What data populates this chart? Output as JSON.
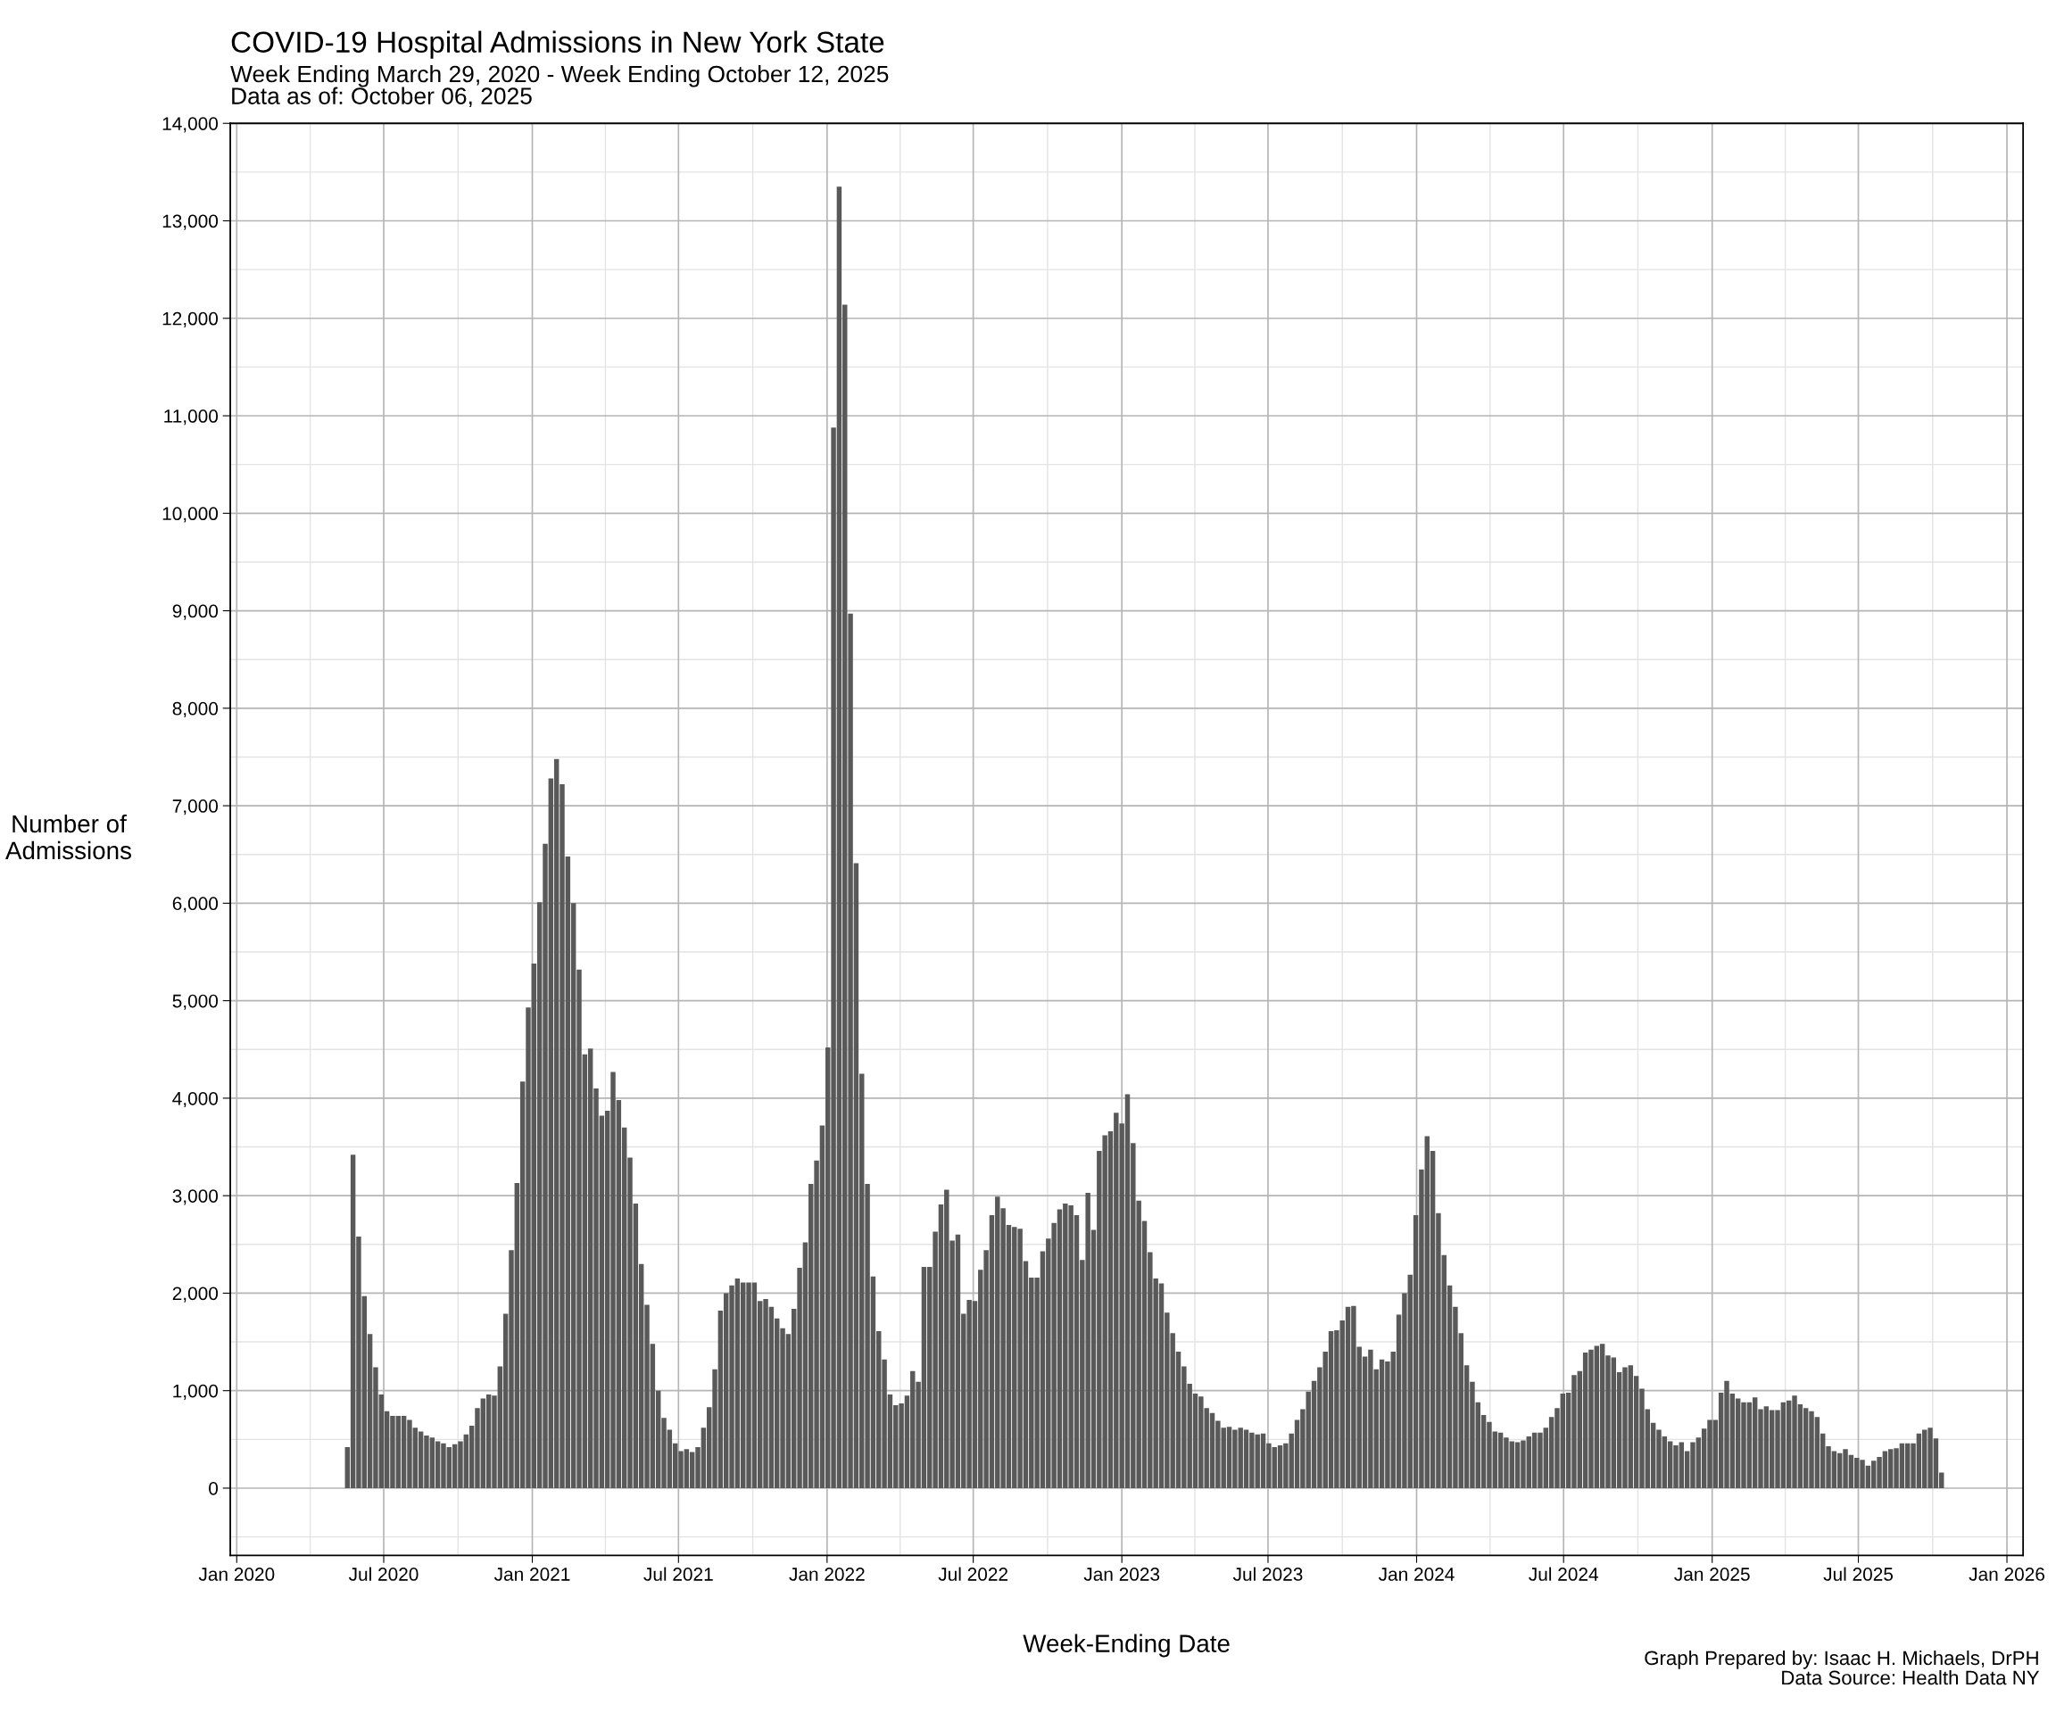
{
  "chart_data": {
    "type": "bar",
    "title": "COVID-19 Hospital Admissions in New York State",
    "subtitle": "Week Ending March 29, 2020 - Week Ending October 12, 2025\nData as of: October 06, 2025",
    "xlabel": "Week-Ending Date",
    "ylabel": "Number of\nAdmissions",
    "annotations": [
      "Graph Prepared by: Isaac H. Michaels, DrPH",
      "Data Source: Health Data NY"
    ],
    "color": "#595959",
    "grid": true,
    "legend": false,
    "xlim": [
      "2019-12-24",
      "2026-01-21"
    ],
    "xticks": [
      {
        "value": "2020-01-01",
        "label": "Jan 2020"
      },
      {
        "value": "2020-07-01",
        "label": "Jul 2020"
      },
      {
        "value": "2021-01-01",
        "label": "Jan 2021"
      },
      {
        "value": "2021-07-01",
        "label": "Jul 2021"
      },
      {
        "value": "2022-01-01",
        "label": "Jan 2022"
      },
      {
        "value": "2022-07-01",
        "label": "Jul 2022"
      },
      {
        "value": "2023-01-01",
        "label": "Jan 2023"
      },
      {
        "value": "2023-07-01",
        "label": "Jul 2023"
      },
      {
        "value": "2024-01-01",
        "label": "Jan 2024"
      },
      {
        "value": "2024-07-01",
        "label": "Jul 2024"
      },
      {
        "value": "2025-01-01",
        "label": "Jan 2025"
      },
      {
        "value": "2025-07-01",
        "label": "Jul 2025"
      },
      {
        "value": "2026-01-01",
        "label": "Jan 2026"
      }
    ],
    "ylim": [
      -690,
      14000
    ],
    "yticks": [
      0,
      {
        "value": 1000,
        "label": "1,000"
      },
      {
        "value": 2000,
        "label": "2,000"
      },
      {
        "value": 3000,
        "label": "3,000"
      },
      {
        "value": 4000,
        "label": "4,000"
      },
      {
        "value": 5000,
        "label": "5,000"
      },
      {
        "value": 6000,
        "label": "6,000"
      },
      {
        "value": 7000,
        "label": "7,000"
      },
      {
        "value": 8000,
        "label": "8,000"
      },
      {
        "value": 9000,
        "label": "9,000"
      },
      {
        "value": 10000,
        "label": "10,000"
      },
      {
        "value": 11000,
        "label": "11,000"
      },
      {
        "value": 12000,
        "label": "12,000"
      },
      {
        "value": 13000,
        "label": "13,000"
      },
      {
        "value": 14000,
        "label": "14,000"
      }
    ],
    "x": [
      "2020-05-17",
      "2020-05-24",
      "2020-05-31",
      "2020-06-07",
      "2020-06-14",
      "2020-06-21",
      "2020-06-28",
      "2020-07-05",
      "2020-07-12",
      "2020-07-19",
      "2020-07-26",
      "2020-08-02",
      "2020-08-09",
      "2020-08-16",
      "2020-08-23",
      "2020-08-30",
      "2020-09-06",
      "2020-09-13",
      "2020-09-20",
      "2020-09-27",
      "2020-10-04",
      "2020-10-11",
      "2020-10-18",
      "2020-10-25",
      "2020-11-01",
      "2020-11-08",
      "2020-11-15",
      "2020-11-22",
      "2020-11-29",
      "2020-12-06",
      "2020-12-13",
      "2020-12-20",
      "2020-12-27",
      "2021-01-03",
      "2021-01-10",
      "2021-01-17",
      "2021-01-24",
      "2021-01-31",
      "2021-02-07",
      "2021-02-14",
      "2021-02-21",
      "2021-02-28",
      "2021-03-07",
      "2021-03-14",
      "2021-03-21",
      "2021-03-28",
      "2021-04-04",
      "2021-04-11",
      "2021-04-18",
      "2021-04-25",
      "2021-05-02",
      "2021-05-09",
      "2021-05-16",
      "2021-05-23",
      "2021-05-30",
      "2021-06-06",
      "2021-06-13",
      "2021-06-20",
      "2021-06-27",
      "2021-07-04",
      "2021-07-11",
      "2021-07-18",
      "2021-07-25",
      "2021-08-01",
      "2021-08-08",
      "2021-08-15",
      "2021-08-22",
      "2021-08-29",
      "2021-09-05",
      "2021-09-12",
      "2021-09-19",
      "2021-09-26",
      "2021-10-03",
      "2021-10-10",
      "2021-10-17",
      "2021-10-24",
      "2021-10-31",
      "2021-11-07",
      "2021-11-14",
      "2021-11-21",
      "2021-11-28",
      "2021-12-05",
      "2021-12-12",
      "2021-12-19",
      "2021-12-26",
      "2022-01-02",
      "2022-01-09",
      "2022-01-16",
      "2022-01-23",
      "2022-01-30",
      "2022-02-06",
      "2022-02-13",
      "2022-02-20",
      "2022-02-27",
      "2022-03-06",
      "2022-03-13",
      "2022-03-20",
      "2022-03-27",
      "2022-04-03",
      "2022-04-10",
      "2022-04-17",
      "2022-04-24",
      "2022-05-01",
      "2022-05-08",
      "2022-05-15",
      "2022-05-22",
      "2022-05-29",
      "2022-06-05",
      "2022-06-12",
      "2022-06-19",
      "2022-06-26",
      "2022-07-03",
      "2022-07-10",
      "2022-07-17",
      "2022-07-24",
      "2022-07-31",
      "2022-08-07",
      "2022-08-14",
      "2022-08-21",
      "2022-08-28",
      "2022-09-04",
      "2022-09-11",
      "2022-09-18",
      "2022-09-25",
      "2022-10-02",
      "2022-10-09",
      "2022-10-16",
      "2022-10-23",
      "2022-10-30",
      "2022-11-06",
      "2022-11-13",
      "2022-11-20",
      "2022-11-27",
      "2022-12-04",
      "2022-12-11",
      "2022-12-18",
      "2022-12-25",
      "2023-01-01",
      "2023-01-08",
      "2023-01-15",
      "2023-01-22",
      "2023-01-29",
      "2023-02-05",
      "2023-02-12",
      "2023-02-19",
      "2023-02-26",
      "2023-03-05",
      "2023-03-12",
      "2023-03-19",
      "2023-03-26",
      "2023-04-02",
      "2023-04-09",
      "2023-04-16",
      "2023-04-23",
      "2023-04-30",
      "2023-05-07",
      "2023-05-14",
      "2023-05-21",
      "2023-05-28",
      "2023-06-04",
      "2023-06-11",
      "2023-06-18",
      "2023-06-25",
      "2023-07-02",
      "2023-07-09",
      "2023-07-16",
      "2023-07-23",
      "2023-07-30",
      "2023-08-06",
      "2023-08-13",
      "2023-08-20",
      "2023-08-27",
      "2023-09-03",
      "2023-09-10",
      "2023-09-17",
      "2023-09-24",
      "2023-10-01",
      "2023-10-08",
      "2023-10-15",
      "2023-10-22",
      "2023-10-29",
      "2023-11-05",
      "2023-11-12",
      "2023-11-19",
      "2023-11-26",
      "2023-12-03",
      "2023-12-10",
      "2023-12-17",
      "2023-12-24",
      "2023-12-31",
      "2024-01-07",
      "2024-01-14",
      "2024-01-21",
      "2024-01-28",
      "2024-02-04",
      "2024-02-11",
      "2024-02-18",
      "2024-02-25",
      "2024-03-03",
      "2024-03-10",
      "2024-03-17",
      "2024-03-24",
      "2024-03-31",
      "2024-04-07",
      "2024-04-14",
      "2024-04-21",
      "2024-04-28",
      "2024-05-05",
      "2024-05-12",
      "2024-05-19",
      "2024-05-26",
      "2024-06-02",
      "2024-06-09",
      "2024-06-16",
      "2024-06-23",
      "2024-06-30",
      "2024-07-07",
      "2024-07-14",
      "2024-07-21",
      "2024-07-28",
      "2024-08-04",
      "2024-08-11",
      "2024-08-18",
      "2024-08-25",
      "2024-09-01",
      "2024-09-08",
      "2024-09-15",
      "2024-09-22",
      "2024-09-29",
      "2024-10-06",
      "2024-10-13",
      "2024-10-20",
      "2024-10-27",
      "2024-11-03",
      "2024-11-10",
      "2024-11-17",
      "2024-11-24",
      "2024-12-01",
      "2024-12-08",
      "2024-12-15",
      "2024-12-22",
      "2024-12-29",
      "2025-01-05",
      "2025-01-12",
      "2025-01-19",
      "2025-01-26",
      "2025-02-02",
      "2025-02-09",
      "2025-02-16",
      "2025-02-23",
      "2025-03-02",
      "2025-03-09",
      "2025-03-16",
      "2025-03-23",
      "2025-03-30",
      "2025-04-06",
      "2025-04-13",
      "2025-04-20",
      "2025-04-27",
      "2025-05-04",
      "2025-05-11",
      "2025-05-18",
      "2025-05-25",
      "2025-06-01",
      "2025-06-08",
      "2025-06-15",
      "2025-06-22",
      "2025-06-29",
      "2025-07-06",
      "2025-07-13",
      "2025-07-20",
      "2025-07-27",
      "2025-08-03",
      "2025-08-10",
      "2025-08-17",
      "2025-08-24",
      "2025-08-31",
      "2025-09-07",
      "2025-09-14",
      "2025-09-21",
      "2025-09-28",
      "2025-10-05",
      "2025-10-12"
    ],
    "values": [
      420,
      3420,
      2580,
      1970,
      1580,
      1240,
      960,
      790,
      740,
      740,
      740,
      700,
      620,
      580,
      540,
      520,
      480,
      460,
      420,
      450,
      480,
      550,
      640,
      820,
      920,
      960,
      950,
      1250,
      1790,
      2440,
      3130,
      4170,
      4930,
      5380,
      6010,
      6610,
      7280,
      7480,
      7220,
      6480,
      6000,
      5320,
      4450,
      4510,
      4100,
      3820,
      3870,
      4270,
      3980,
      3700,
      3390,
      2920,
      2300,
      1880,
      1480,
      1000,
      720,
      600,
      460,
      380,
      400,
      370,
      420,
      620,
      830,
      1220,
      1820,
      2000,
      2080,
      2150,
      2110,
      2110,
      2110,
      1920,
      1940,
      1860,
      1740,
      1640,
      1580,
      1840,
      2260,
      2520,
      3120,
      3360,
      3720,
      4520,
      10880,
      13350,
      12140,
      8970,
      6410,
      4250,
      3120,
      2170,
      1610,
      1320,
      960,
      850,
      870,
      950,
      1200,
      1090,
      2270,
      2270,
      2630,
      2910,
      3060,
      2540,
      2600,
      1790,
      1930,
      1920,
      2240,
      2440,
      2800,
      2990,
      2870,
      2700,
      2680,
      2660,
      2330,
      2160,
      2160,
      2430,
      2560,
      2720,
      2860,
      2920,
      2900,
      2800,
      2340,
      3030,
      2650,
      3460,
      3620,
      3660,
      3850,
      3740,
      4040,
      3540,
      2950,
      2740,
      2420,
      2150,
      2100,
      1800,
      1590,
      1400,
      1250,
      1070,
      970,
      940,
      820,
      770,
      690,
      620,
      630,
      600,
      620,
      600,
      570,
      550,
      560,
      460,
      420,
      440,
      460,
      560,
      700,
      810,
      990,
      1100,
      1240,
      1400,
      1610,
      1620,
      1720,
      1860,
      1870,
      1450,
      1350,
      1420,
      1220,
      1320,
      1300,
      1400,
      1780,
      2000,
      2190,
      2800,
      3270,
      3610,
      3460,
      2820,
      2390,
      2080,
      1860,
      1590,
      1260,
      1090,
      880,
      750,
      680,
      580,
      570,
      520,
      480,
      470,
      490,
      530,
      570,
      570,
      620,
      730,
      820,
      970,
      980,
      1160,
      1200,
      1390,
      1420,
      1460,
      1480,
      1360,
      1340,
      1190,
      1240,
      1260,
      1150,
      1020,
      810,
      670,
      600,
      530,
      480,
      440,
      470,
      380,
      470,
      520,
      610,
      700,
      700,
      980,
      1100,
      970,
      920,
      880,
      880,
      930,
      810,
      840,
      800,
      800,
      880,
      900,
      950,
      860,
      820,
      790,
      730,
      560,
      430,
      380,
      360,
      400,
      340,
      310,
      290,
      230,
      280,
      320,
      380,
      400,
      410,
      460,
      460,
      460,
      560,
      600,
      620,
      510,
      160
    ]
  }
}
